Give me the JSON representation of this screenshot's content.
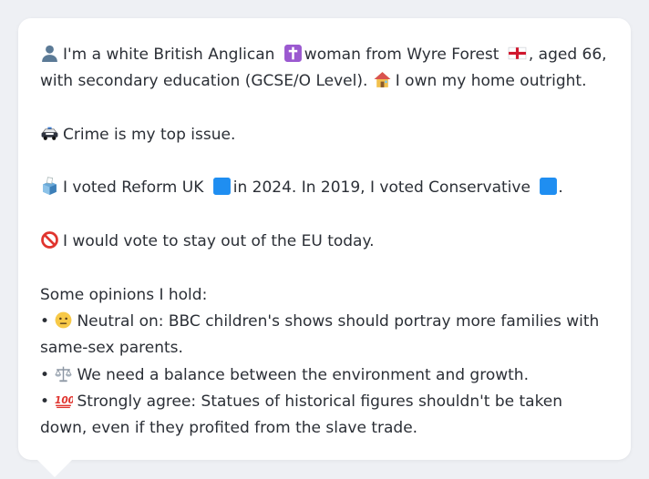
{
  "profile": {
    "identity_pre": "I'm a white British Anglican",
    "identity_mid": "woman from Wyre Forest",
    "identity_post": ", aged 66,",
    "education": "with secondary education (GCSE/O Level).",
    "home": "I own my home outright.",
    "issue": "Crime is my top issue.",
    "vote_pre": "I voted Reform UK",
    "vote_mid": "in 2024. In 2019, I voted Conservative",
    "vote_post": ".",
    "eu": "I would vote to stay out of the EU today.",
    "opinions_header": "Some opinions I hold:",
    "bullet": "•",
    "opinions": [
      {
        "text": "Neutral on: BBC children's shows should portray more families with same-sex parents."
      },
      {
        "text": "We need a balance between the environment and growth."
      },
      {
        "text": "Strongly agree: Statues of historical figures shouldn't be taken down, even if they profited from the slave trade."
      }
    ]
  },
  "icons": {
    "person": "person-silhouette-icon",
    "religion": "latin-cross-icon",
    "flag": "england-flag-icon",
    "home": "house-icon",
    "crime": "police-car-icon",
    "ballot": "ballot-box-icon",
    "party_reform": "blue-square-icon",
    "party_conservative": "blue-square-icon",
    "eu": "prohibited-icon",
    "neutral": "neutral-face-icon",
    "balance": "balance-scale-icon",
    "strong": "hundred-points-icon"
  },
  "colors": {
    "card_bg": "#ffffff",
    "page_bg": "#eef0f4",
    "text": "#2b2f36",
    "party_blue": "#1f8ef1"
  }
}
